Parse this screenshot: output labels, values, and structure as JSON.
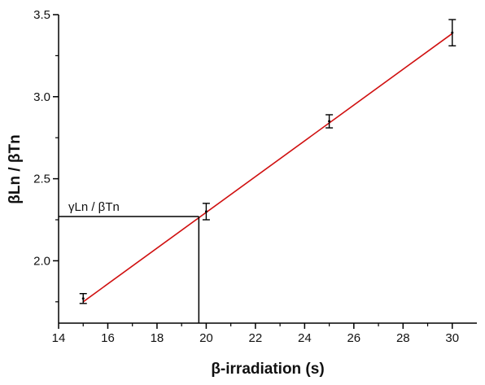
{
  "chart_data": {
    "type": "scatter",
    "xlabel": "β-irradiation (s)",
    "ylabel": "βLn / βTn",
    "xlim": [
      14,
      31
    ],
    "ylim": [
      1.62,
      3.5
    ],
    "xticks": [
      14,
      16,
      18,
      20,
      22,
      24,
      26,
      28,
      30
    ],
    "yticks": [
      2.0,
      2.5,
      3.0,
      3.5
    ],
    "tick_labels_x": [
      "14",
      "16",
      "18",
      "20",
      "22",
      "24",
      "26",
      "28",
      "30"
    ],
    "tick_labels_y": [
      "2.0",
      "2.5",
      "3.0",
      "3.5"
    ],
    "series": [
      {
        "points": [
          {
            "x": 15,
            "y": 1.77,
            "err": 0.03
          },
          {
            "x": 20,
            "y": 2.3,
            "err": 0.05
          },
          {
            "x": 25,
            "y": 2.85,
            "err": 0.04
          },
          {
            "x": 30,
            "y": 3.39,
            "err": 0.08
          }
        ]
      }
    ],
    "fit_line": {
      "x": [
        15,
        30
      ],
      "y": [
        1.75,
        3.385
      ],
      "color": "#d01010"
    },
    "interpolation": {
      "x": 19.7,
      "y": 2.27,
      "label": "γLn / βTn"
    },
    "grid": false
  }
}
